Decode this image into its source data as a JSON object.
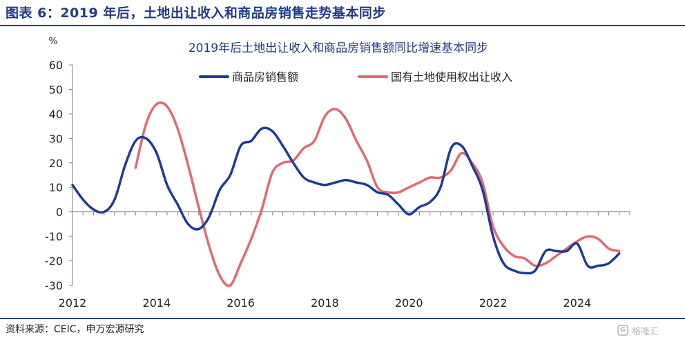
{
  "header": {
    "figure_title": "图表 6：2019 年后，土地出让收入和商品房销售走势基本同步"
  },
  "footer": {
    "source": "资料来源：CEIC，申万宏源研究",
    "watermark": "格隆汇"
  },
  "colors": {
    "title": "#1f3a8a",
    "sales_series": "#1b3a9c",
    "land_series": "#e8666e",
    "axis": "#7f7f7f"
  },
  "chart_data": {
    "type": "line",
    "title": "2019年后土地出让收入和商品房销售额同比增速基本同步",
    "ylabel": "%",
    "xlabel": "",
    "ylim": [
      -30,
      60
    ],
    "yticks": [
      60,
      50,
      40,
      30,
      20,
      10,
      0,
      -10,
      -20,
      -30
    ],
    "xlim": [
      2012,
      2025.25
    ],
    "xticks": [
      "2012",
      "2014",
      "2016",
      "2018",
      "2020",
      "2022",
      "2024"
    ],
    "legend_position": "top-right",
    "grid": false,
    "series": [
      {
        "name": "商品房销售额",
        "color": "#1b3a9c",
        "x": [
          2012.0,
          2012.25,
          2012.5,
          2012.75,
          2013.0,
          2013.25,
          2013.5,
          2013.75,
          2014.0,
          2014.25,
          2014.5,
          2014.75,
          2015.0,
          2015.25,
          2015.5,
          2015.75,
          2016.0,
          2016.25,
          2016.5,
          2016.75,
          2017.0,
          2017.25,
          2017.5,
          2017.75,
          2018.0,
          2018.25,
          2018.5,
          2018.75,
          2019.0,
          2019.25,
          2019.5,
          2019.75,
          2020.0,
          2020.25,
          2020.5,
          2020.75,
          2021.0,
          2021.25,
          2021.5,
          2021.75,
          2022.0,
          2022.25,
          2022.5,
          2022.75,
          2023.0,
          2023.25,
          2023.5,
          2023.75,
          2024.0,
          2024.25,
          2024.5,
          2024.75,
          2025.0
        ],
        "values": [
          11,
          5,
          1,
          0,
          5,
          19,
          29,
          30,
          24,
          11,
          3,
          -5,
          -7,
          -2,
          9,
          15,
          27,
          29,
          34,
          33,
          27,
          20,
          14,
          12,
          11,
          12,
          13,
          12,
          11,
          8,
          7,
          3,
          -1,
          2,
          4,
          10,
          26,
          27,
          19,
          9,
          -10,
          -21,
          -24,
          -25,
          -24,
          -16,
          -16,
          -16,
          -13,
          -22,
          -22,
          -21,
          -17
        ]
      },
      {
        "name": "国有土地使用权出让收入",
        "color": "#e8666e",
        "x": [
          2013.5,
          2013.75,
          2014.0,
          2014.25,
          2014.5,
          2014.75,
          2015.0,
          2015.25,
          2015.5,
          2015.75,
          2016.0,
          2016.25,
          2016.5,
          2016.75,
          2017.0,
          2017.25,
          2017.5,
          2017.75,
          2018.0,
          2018.25,
          2018.5,
          2018.75,
          2019.0,
          2019.25,
          2019.5,
          2019.75,
          2020.0,
          2020.25,
          2020.5,
          2020.75,
          2021.0,
          2021.25,
          2021.5,
          2021.75,
          2022.0,
          2022.25,
          2022.5,
          2022.75,
          2023.0,
          2023.25,
          2023.5,
          2023.75,
          2024.0,
          2024.25,
          2024.5,
          2024.75,
          2025.0
        ],
        "values": [
          18,
          36,
          44,
          43,
          34,
          19,
          2,
          -14,
          -26,
          -30,
          -21,
          -11,
          1,
          16,
          20,
          21,
          26,
          29,
          39,
          42,
          38,
          29,
          21,
          10,
          8,
          8,
          10,
          12,
          14,
          14,
          17,
          24,
          20,
          12,
          -6,
          -14,
          -18,
          -19,
          -22,
          -21,
          -18,
          -15,
          -12,
          -10,
          -11,
          -15,
          -16
        ]
      }
    ]
  }
}
